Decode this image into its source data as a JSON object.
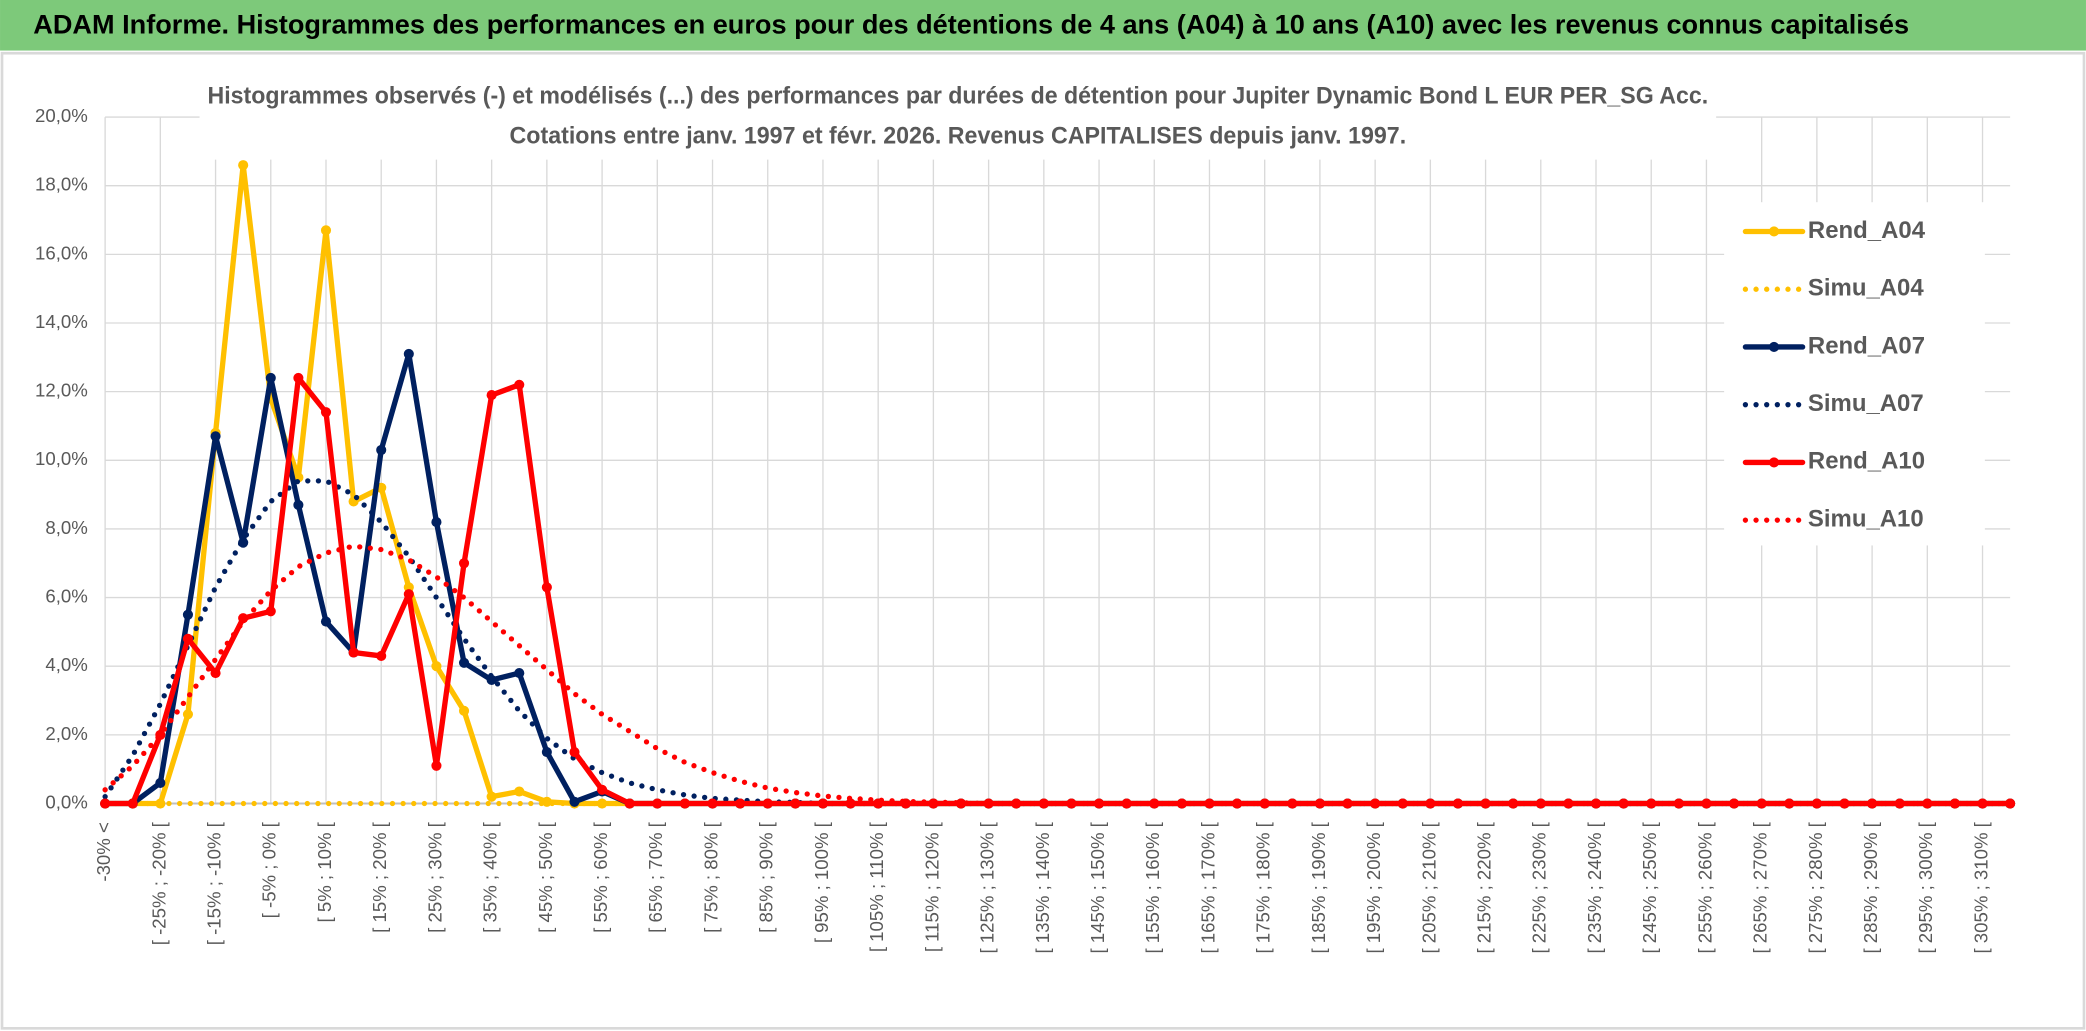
{
  "header": {
    "title": "ADAM Informe. Histogrammes des performances en euros pour des détentions de 4 ans (A04) à 10 ans (A10) avec les revenus connus capitalisés"
  },
  "chart_data": {
    "type": "line",
    "title": "Histogrammes observés (-) et modélisés (...) des performances par durées de détention pour Jupiter Dynamic Bond L EUR PER_SG Acc.",
    "subtitle": "Cotations entre janv. 1997 et févr. 2026. Revenus CAPITALISES depuis janv. 1997.",
    "categories": [
      "-30% <",
      null,
      "[ -25% ; -20% [",
      null,
      "[ -15% ; -10% [",
      null,
      "[ -5% ; 0% [",
      null,
      "[ 5% ; 10% [",
      null,
      "[ 15% ; 20% [",
      null,
      "[ 25% ; 30% [",
      null,
      "[ 35% ; 40% [",
      null,
      "[ 45% ; 50% [",
      null,
      "[ 55% ; 60% [",
      null,
      "[ 65% ; 70% [",
      null,
      "[ 75% ; 80% [",
      null,
      "[ 85% ; 90% [",
      null,
      "[ 95% ; 100% [",
      null,
      "[ 105% ; 110% [",
      null,
      "[ 115% ; 120% [",
      null,
      "[ 125% ; 130% [",
      null,
      "[ 135% ; 140% [",
      null,
      "[ 145% ; 150% [",
      null,
      "[ 155% ; 160% [",
      null,
      "[ 165% ; 170% [",
      null,
      "[ 175% ; 180% [",
      null,
      "[ 185% ; 190% [",
      null,
      "[ 195% ; 200% [",
      null,
      "[ 205% ; 210% [",
      null,
      "[ 215% ; 220% [",
      null,
      "[ 225% ; 230% [",
      null,
      "[ 235% ; 240% [",
      null,
      "[ 245% ; 250% [",
      null,
      "[ 255% ; 260% [",
      null,
      "[ 265% ; 270% [",
      null,
      "[ 275% ; 280% [",
      null,
      "[ 285% ; 290% [",
      null,
      "[ 295% ; 300% [",
      null,
      "[ 305% ; 310% [",
      null
    ],
    "series": [
      {
        "name": "Rend_A04",
        "color": "#FFC000",
        "style": "solid",
        "marker": true,
        "values": [
          0,
          0,
          0,
          2.6,
          10.8,
          18.6,
          11.8,
          9.5,
          16.7,
          8.8,
          9.2,
          6.3,
          4.0,
          2.7,
          0.2,
          0.35,
          0.05,
          0,
          0,
          0,
          0,
          0,
          0,
          0,
          0,
          0,
          0,
          0,
          0,
          0,
          0,
          0,
          0,
          0,
          0,
          0,
          0,
          0,
          0,
          0,
          0,
          0,
          0,
          0,
          0,
          0,
          0,
          0,
          0,
          0,
          0,
          0,
          0,
          0,
          0,
          0,
          0,
          0,
          0,
          0,
          0,
          0,
          0,
          0,
          0,
          0,
          0,
          0,
          0,
          0
        ]
      },
      {
        "name": "Simu_A04",
        "color": "#FFC000",
        "style": "dotted",
        "marker": false,
        "values": [
          0,
          0,
          0,
          0,
          0,
          0,
          0,
          0,
          0,
          0,
          0,
          0,
          0,
          0,
          0,
          0,
          0,
          0,
          0,
          0,
          0,
          0,
          0,
          0,
          0,
          0,
          0,
          0,
          0,
          0,
          0,
          0,
          0,
          0,
          0,
          0,
          0,
          0,
          0,
          0,
          0,
          0,
          0,
          0,
          0,
          0,
          0,
          0,
          0,
          0,
          0,
          0,
          0,
          0,
          0,
          0,
          0,
          0,
          0,
          0,
          0,
          0,
          0,
          0,
          0,
          0,
          0,
          0,
          0,
          0
        ]
      },
      {
        "name": "Rend_A07",
        "color": "#002060",
        "style": "solid",
        "marker": true,
        "values": [
          0,
          0,
          0.6,
          5.5,
          10.7,
          7.6,
          12.4,
          8.7,
          5.3,
          4.4,
          10.3,
          13.1,
          8.2,
          4.1,
          3.6,
          3.8,
          1.5,
          0.05,
          0.35,
          0,
          0,
          0,
          0,
          0,
          0,
          0,
          0,
          0,
          0,
          0,
          0,
          0,
          0,
          0,
          0,
          0,
          0,
          0,
          0,
          0,
          0,
          0,
          0,
          0,
          0,
          0,
          0,
          0,
          0,
          0,
          0,
          0,
          0,
          0,
          0,
          0,
          0,
          0,
          0,
          0,
          0,
          0,
          0,
          0,
          0,
          0,
          0,
          0,
          0,
          0
        ]
      },
      {
        "name": "Simu_A07",
        "color": "#002060",
        "style": "dotted",
        "marker": false,
        "values": [
          0.2,
          1.4,
          2.9,
          4.6,
          6.3,
          7.7,
          8.8,
          9.4,
          9.4,
          9.0,
          8.2,
          7.2,
          6.0,
          4.8,
          3.7,
          2.7,
          1.9,
          1.3,
          0.9,
          0.6,
          0.4,
          0.25,
          0.15,
          0.1,
          0.05,
          0.03,
          0,
          0,
          0,
          0,
          0,
          0,
          0,
          0,
          0,
          0,
          0,
          0,
          0,
          0,
          0,
          0,
          0,
          0,
          0,
          0,
          0,
          0,
          0,
          0,
          0,
          0,
          0,
          0,
          0,
          0,
          0,
          0,
          0,
          0,
          0,
          0,
          0,
          0,
          0,
          0,
          0,
          0,
          0,
          0
        ]
      },
      {
        "name": "Rend_A10",
        "color": "#FF0000",
        "style": "solid",
        "marker": true,
        "values": [
          0,
          0,
          2.0,
          4.8,
          3.8,
          5.4,
          5.6,
          12.4,
          11.4,
          4.4,
          4.3,
          6.1,
          1.1,
          7.0,
          11.9,
          12.2,
          6.3,
          1.5,
          0.4,
          0,
          0,
          0,
          0,
          0,
          0,
          0,
          0,
          0,
          0,
          0,
          0,
          0,
          0,
          0,
          0,
          0,
          0,
          0,
          0,
          0,
          0,
          0,
          0,
          0,
          0,
          0,
          0,
          0,
          0,
          0,
          0,
          0,
          0,
          0,
          0,
          0,
          0,
          0,
          0,
          0,
          0,
          0,
          0,
          0,
          0,
          0,
          0,
          0,
          0,
          0
        ]
      },
      {
        "name": "Simu_A10",
        "color": "#FF0000",
        "style": "dotted",
        "marker": false,
        "values": [
          0.4,
          1.1,
          2.0,
          3.1,
          4.2,
          5.3,
          6.2,
          6.9,
          7.3,
          7.5,
          7.4,
          7.1,
          6.6,
          6.0,
          5.3,
          4.6,
          3.9,
          3.2,
          2.6,
          2.1,
          1.6,
          1.2,
          0.9,
          0.65,
          0.45,
          0.32,
          0.22,
          0.15,
          0.1,
          0.06,
          0.04,
          0.02,
          0,
          0,
          0,
          0,
          0,
          0,
          0,
          0,
          0,
          0,
          0,
          0,
          0,
          0,
          0,
          0,
          0,
          0,
          0,
          0,
          0,
          0,
          0,
          0,
          0,
          0,
          0,
          0,
          0,
          0,
          0,
          0,
          0,
          0,
          0,
          0,
          0,
          0
        ]
      }
    ],
    "ylim": [
      0,
      20
    ],
    "yticks": [
      {
        "value": 0,
        "label": "0,0%"
      },
      {
        "value": 2,
        "label": "2,0%"
      },
      {
        "value": 4,
        "label": "4,0%"
      },
      {
        "value": 6,
        "label": "6,0%"
      },
      {
        "value": 8,
        "label": "8,0%"
      },
      {
        "value": 10,
        "label": "10,0%"
      },
      {
        "value": 12,
        "label": "12,0%"
      },
      {
        "value": 14,
        "label": "14,0%"
      },
      {
        "value": 16,
        "label": "16,0%"
      },
      {
        "value": 18,
        "label": "18,0%"
      },
      {
        "value": 20,
        "label": "20,0%"
      }
    ],
    "grid": true,
    "legend": "right"
  }
}
